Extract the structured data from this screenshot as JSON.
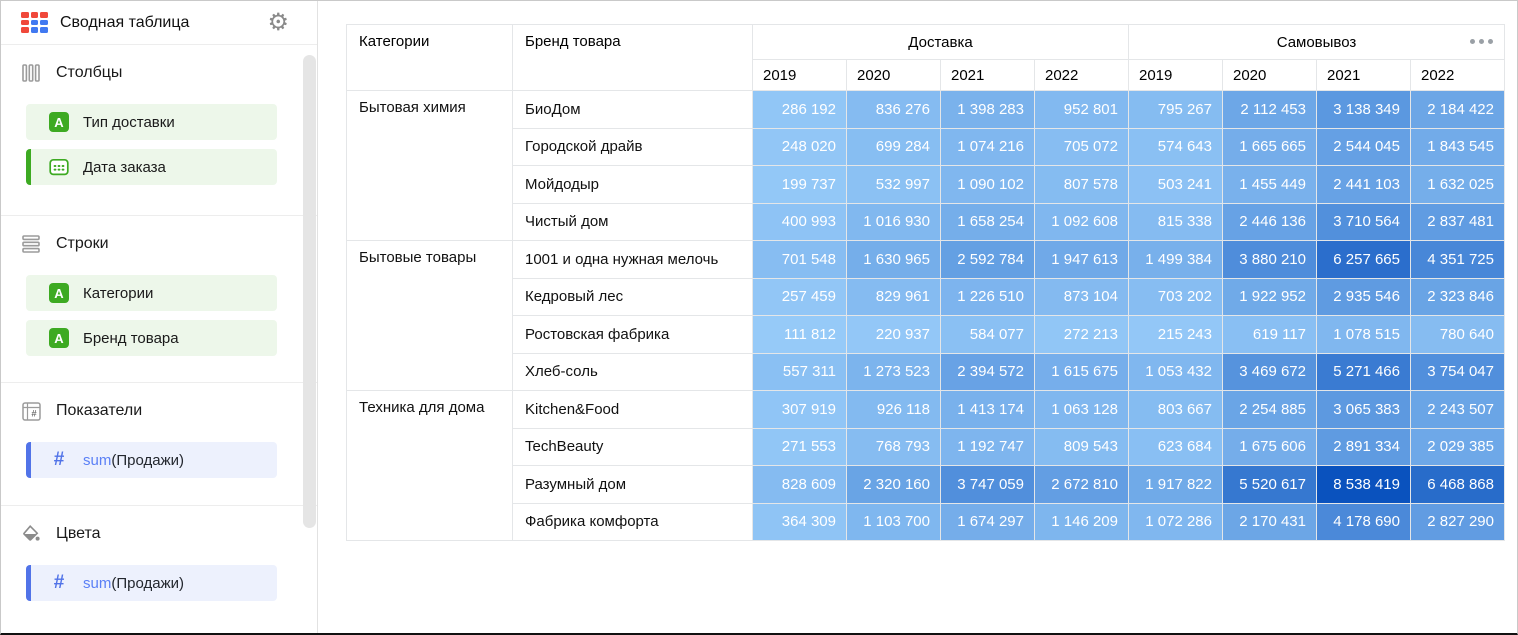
{
  "app": {
    "title": "Сводная таблица"
  },
  "icons": {
    "gear": "⚙",
    "string": "A",
    "number": "#"
  },
  "colors": {
    "logo_red": "#f0483a",
    "logo_blue": "#4179f1",
    "green": "#3daa22",
    "green_chip_bg": "#edf7ea",
    "blue": "#5173e8",
    "blue_text": "#5b80f6",
    "blue_chip_bg": "#edf1fd"
  },
  "sidebar": {
    "sections": [
      {
        "label": "Столбцы",
        "items": [
          {
            "label": "Тип доставки",
            "type": "dimension-string"
          },
          {
            "label": "Дата заказа",
            "type": "dimension-date",
            "accent": true
          }
        ]
      },
      {
        "label": "Строки",
        "items": [
          {
            "label": "Категории",
            "type": "dimension-string"
          },
          {
            "label": "Бренд товара",
            "type": "dimension-string"
          }
        ]
      },
      {
        "label": "Показатели",
        "items": [
          {
            "fn": "sum",
            "field": "(Продажи)",
            "type": "measure",
            "accent": true
          }
        ]
      },
      {
        "label": "Цвета",
        "items": [
          {
            "fn": "sum",
            "field": "(Продажи)",
            "type": "measure",
            "accent": true
          }
        ]
      }
    ]
  },
  "pivot": {
    "corner": [
      "Категории",
      "Бренд товара"
    ],
    "groups": [
      {
        "label": "Доставка",
        "years": [
          "2019",
          "2020",
          "2021",
          "2022"
        ]
      },
      {
        "label": "Самовывоз",
        "years": [
          "2019",
          "2020",
          "2021",
          "2022"
        ]
      }
    ],
    "measure": "sum(Продажи)",
    "color_scale": {
      "min": "#96caf8",
      "max": "#0a52be",
      "gamma": 0.85
    },
    "rows": [
      {
        "category": "Бытовая химия",
        "span": 4,
        "brand": "БиоДом",
        "values": [
          286192,
          836276,
          1398283,
          952801,
          795267,
          2112453,
          3138349,
          2184422
        ]
      },
      {
        "brand": "Городской драйв",
        "values": [
          248020,
          699284,
          1074216,
          705072,
          574643,
          1665665,
          2544045,
          1843545
        ]
      },
      {
        "brand": "Мойдодыр",
        "values": [
          199737,
          532997,
          1090102,
          807578,
          503241,
          1455449,
          2441103,
          1632025
        ]
      },
      {
        "brand": "Чистый дом",
        "values": [
          400993,
          1016930,
          1658254,
          1092608,
          815338,
          2446136,
          3710564,
          2837481
        ]
      },
      {
        "category": "Бытовые товары",
        "span": 4,
        "brand": "1001 и одна нужная мелочь",
        "values": [
          701548,
          1630965,
          2592784,
          1947613,
          1499384,
          3880210,
          6257665,
          4351725
        ]
      },
      {
        "brand": "Кедровый лес",
        "values": [
          257459,
          829961,
          1226510,
          873104,
          703202,
          1922952,
          2935546,
          2323846
        ]
      },
      {
        "brand": "Ростовская фабрика",
        "values": [
          111812,
          220937,
          584077,
          272213,
          215243,
          619117,
          1078515,
          780640
        ]
      },
      {
        "brand": "Хлеб-соль",
        "values": [
          557311,
          1273523,
          2394572,
          1615675,
          1053432,
          3469672,
          5271466,
          3754047
        ]
      },
      {
        "category": "Техника для дома",
        "span": 4,
        "brand": "Kitchen&Food",
        "values": [
          307919,
          926118,
          1413174,
          1063128,
          803667,
          2254885,
          3065383,
          2243507
        ]
      },
      {
        "brand": "TechBeauty",
        "values": [
          271553,
          768793,
          1192747,
          809543,
          623684,
          1675606,
          2891334,
          2029385
        ]
      },
      {
        "brand": "Разумный дом",
        "values": [
          828609,
          2320160,
          3747059,
          2672810,
          1917822,
          5520617,
          8538419,
          6468868
        ]
      },
      {
        "brand": "Фабрика комфорта",
        "values": [
          364309,
          1103700,
          1674297,
          1146209,
          1072286,
          2170431,
          4178690,
          2827290
        ]
      }
    ]
  }
}
